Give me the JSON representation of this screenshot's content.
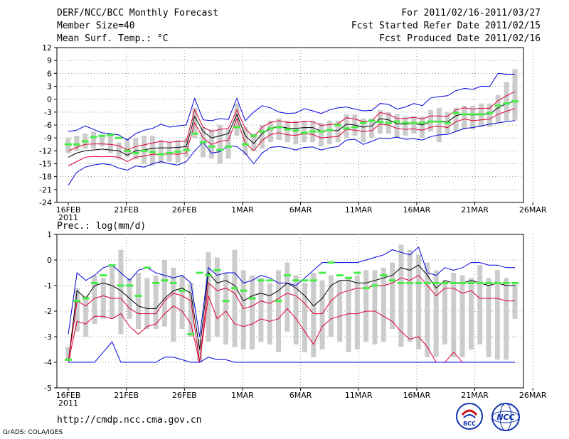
{
  "header": {
    "title": "DERF/NCC/BCC Monthly Forecast",
    "member_size": "Member Size=40",
    "variable": "Mean Surf. Temp.: °C",
    "period": "For 2011/02/16-2011/03/27",
    "started": "Fcst Started Refer Date 2011/02/15",
    "produced": "Fcst Produced Date 2011/02/16"
  },
  "footer": {
    "url": "http://cmdp.ncc.cma.gov.cn",
    "grads": "GrADS: COLA/IGES",
    "logo_left": "BCC",
    "logo_right": "NCC"
  },
  "colors": {
    "envelope": "#0000dd",
    "percentile": "#dd0033",
    "median": "#000000",
    "box": "#cccccc",
    "obs": "#44ee44",
    "grid": "#999999"
  },
  "chart_data": [
    {
      "type": "line",
      "title": "Mean Surf. Temp.: °C",
      "ylim": [
        -24,
        12
      ],
      "yticks": [
        "12",
        "9",
        "6",
        "3",
        "0",
        "-3",
        "-6",
        "-9",
        "-12",
        "-15",
        "-18",
        "-21",
        "-24"
      ],
      "xticks": [
        "16FEB",
        "21FEB",
        "26FEB",
        "1MAR",
        "6MAR",
        "11MAR",
        "16MAR",
        "21MAR",
        "26MAR"
      ],
      "xyear": "2011",
      "series": [
        {
          "name": "max",
          "values": [
            -20,
            -17,
            -15.8,
            -15.3,
            -15,
            -15.2,
            -16,
            -16.5,
            -15.5,
            -15.8,
            -15,
            -14.5,
            -15,
            -15.3,
            -14.5,
            -12,
            -10,
            -12.5,
            -12.2,
            -10.8,
            -11,
            -12.5,
            -15,
            -12.5,
            -11.2,
            -11,
            -11.3,
            -11.8,
            -11.2,
            -11.1,
            -11.8,
            -11.3,
            -11,
            -9.5,
            -9.3,
            -10.5,
            -9.8,
            -9,
            -9.2,
            -8.8,
            -9.3,
            -9.2,
            -9.5,
            -8.7,
            -8.3,
            -8.2,
            -7.5,
            -6.8,
            -6.6,
            -6.2,
            -5.8,
            -5.5,
            -5.2,
            -5
          ]
        },
        {
          "name": "p90",
          "values": [
            -15.5,
            -14.5,
            -13.5,
            -13.3,
            -13.4,
            -13.3,
            -13.5,
            -14.5,
            -13.5,
            -13.2,
            -12.8,
            -12.8,
            -12.7,
            -12.8,
            -12.5,
            -5.5,
            -9,
            -10.5,
            -9.8,
            -9.5,
            -4.5,
            -10.2,
            -12,
            -9.6,
            -8.2,
            -7.8,
            -8.3,
            -8.4,
            -8,
            -8.2,
            -9,
            -8.8,
            -8.7,
            -7,
            -7.2,
            -7.5,
            -7.3,
            -5.8,
            -6,
            -6.8,
            -7,
            -6.9,
            -7.2,
            -6.5,
            -6.3,
            -6.6,
            -5.2,
            -4.6,
            -5,
            -4.8,
            -4.6,
            -3.5,
            -2.8,
            -2.2
          ]
        },
        {
          "name": "median",
          "values": [
            -13.5,
            -12.5,
            -12,
            -11.8,
            -11.6,
            -11.8,
            -12,
            -13,
            -12,
            -11.8,
            -11.4,
            -11.3,
            -11.3,
            -11.2,
            -11,
            -4,
            -7.5,
            -9,
            -8.5,
            -8,
            -3.5,
            -8.5,
            -10.3,
            -8,
            -6.8,
            -6.3,
            -6.7,
            -6.8,
            -6.6,
            -6.6,
            -7.4,
            -7.3,
            -7.3,
            -5.8,
            -6,
            -6.5,
            -6.2,
            -4.5,
            -4.8,
            -5.7,
            -5.8,
            -5.6,
            -6,
            -5.2,
            -5.1,
            -5.3,
            -3.8,
            -3.4,
            -3.7,
            -3.5,
            -3.4,
            -2,
            -1,
            -0.5
          ]
        },
        {
          "name": "p10",
          "values": [
            -12,
            -11.2,
            -10.5,
            -10.4,
            -10.4,
            -10.5,
            -10.8,
            -11.8,
            -11,
            -10.6,
            -10.2,
            -9.8,
            -10,
            -9.8,
            -9.8,
            -2.5,
            -6.5,
            -7.5,
            -7,
            -6.8,
            -2.5,
            -6.8,
            -8.8,
            -6.5,
            -5.4,
            -5,
            -5.4,
            -5.4,
            -5.2,
            -5.2,
            -6.1,
            -5.9,
            -5.7,
            -4.3,
            -4.6,
            -5.2,
            -5,
            -3.1,
            -3.5,
            -4.5,
            -4.5,
            -4.2,
            -4.6,
            -3.9,
            -3.9,
            -4,
            -2.5,
            -2,
            -2.3,
            -2.1,
            -2.1,
            -0.3,
            0.8,
            1.8
          ]
        },
        {
          "name": "min",
          "values": [
            -7.5,
            -7.2,
            -6.2,
            -7,
            -7.8,
            -8,
            -8.3,
            -9.5,
            -8,
            -7.2,
            -6.8,
            -5.8,
            -6.5,
            -6.2,
            -6,
            0.2,
            -4.8,
            -5,
            -4.5,
            -4.7,
            0.2,
            -5,
            -3,
            -1.5,
            -2,
            -3,
            -3.3,
            -3.2,
            -2.2,
            -2.7,
            -3.3,
            -2.5,
            -2,
            -1.8,
            -2.3,
            -2.7,
            -2.6,
            -1,
            -1.2,
            -2.3,
            -1.8,
            -1,
            -1.5,
            0.3,
            0.6,
            0.8,
            2,
            2.5,
            2.3,
            3,
            3,
            6,
            5.8,
            5.8
          ]
        }
      ],
      "box_low": [
        -12.5,
        -12,
        -11.5,
        -11.5,
        -11,
        -12.5,
        -14,
        -13.5,
        -14,
        -15,
        -15.5,
        -15,
        -14.5,
        -14.8,
        -13.5,
        -9,
        -13.5,
        -13.8,
        -15,
        -13.8,
        -8.5,
        -13,
        -12,
        -11.5,
        -10,
        -9.5,
        -10,
        -10.5,
        -10,
        -10,
        -11,
        -10.5,
        -10,
        -9,
        -8.5,
        -10,
        -9,
        -8,
        -8,
        -9,
        -8.5,
        -8,
        -9,
        -7.5,
        -10,
        -8,
        -7.5,
        -7,
        -7,
        -6.5,
        -6.5,
        -5.5,
        -5,
        -5
      ],
      "box_high": [
        -9,
        -8.5,
        -8,
        -7.5,
        -8.5,
        -8,
        -10,
        -9,
        -9,
        -8.5,
        -8.5,
        -9.5,
        -10,
        -9.5,
        -9,
        -2,
        -6.5,
        -7,
        -6,
        -7,
        -1,
        -6.5,
        -8,
        -6,
        -5,
        -4.5,
        -5,
        -5,
        -5,
        -5,
        -5.5,
        -5,
        -5,
        -3.5,
        -3.5,
        -4.5,
        -4.5,
        -2.5,
        -3,
        -3.5,
        -4,
        -4,
        -4,
        -2.5,
        -2,
        -3,
        -2,
        -1.5,
        -1.5,
        -1,
        -1,
        1,
        4,
        7
      ],
      "obs": [
        -10.5,
        -10.5,
        -9.8,
        -8.8,
        -8.5,
        -8.3,
        -9,
        -12,
        -12.5,
        -12,
        -12.3,
        -12.8,
        -12.5,
        -12.2,
        -11.8,
        -8,
        -10,
        -11,
        -11.8,
        -11,
        -6.5,
        -10.5,
        -8.5,
        -7.5,
        -6.8,
        -6.5,
        -7,
        -7.3,
        -7.8,
        -7.5,
        -7.5,
        -7.2,
        -6,
        -6.8,
        -6.5,
        -5.5,
        -5,
        -5.3,
        -5.5,
        -5.2,
        -5.5,
        -5.5,
        -5.5,
        -5.2,
        -5.2,
        -5.5,
        -3.2,
        -3.5,
        -3.5,
        -3.5,
        -3.2,
        -1.5,
        -1,
        -0.5
      ]
    },
    {
      "type": "line",
      "title": "Prec.: log(mm/d)",
      "ylim": [
        -5,
        1
      ],
      "yticks": [
        "1",
        "0",
        "-1",
        "-2",
        "-3",
        "-4",
        "-5"
      ],
      "xticks": [
        "16FEB",
        "21FEB",
        "26FEB",
        "1MAR",
        "6MAR",
        "11MAR",
        "16MAR",
        "21MAR",
        "26MAR"
      ],
      "xyear": "2011",
      "series": [
        {
          "name": "max",
          "values": [
            -2.9,
            -0.5,
            -0.8,
            -0.6,
            -0.3,
            -0.2,
            -0.5,
            -0.8,
            -0.4,
            -0.3,
            -0.5,
            -0.6,
            -0.7,
            -0.6,
            -0.9,
            -3,
            -0.3,
            -0.6,
            -0.5,
            -0.5,
            -0.9,
            -0.8,
            -0.6,
            -0.7,
            -0.9,
            -0.9,
            -1,
            -0.7,
            -0.4,
            -0.1,
            -0.1,
            -0.1,
            -0.1,
            -0.1,
            0,
            0.1,
            0.2,
            0.4,
            0.3,
            0.2,
            0.5,
            -0.5,
            -0.6,
            -0.3,
            -0.4,
            -0.3,
            -0.1,
            -0.1,
            -0.2,
            -0.2,
            -0.3,
            -0.3
          ]
        },
        {
          "name": "median",
          "values": [
            -4,
            -1.2,
            -1.5,
            -1,
            -0.9,
            -1,
            -1.2,
            -1.5,
            -1.8,
            -1.9,
            -1.9,
            -1.5,
            -1.2,
            -1.1,
            -1.3,
            -3.5,
            -0.5,
            -0.9,
            -0.8,
            -1,
            -1.6,
            -1.4,
            -1.3,
            -1.4,
            -1.2,
            -0.9,
            -1.1,
            -1.4,
            -1.8,
            -1.5,
            -1,
            -0.8,
            -0.8,
            -0.9,
            -0.9,
            -0.8,
            -0.7,
            -0.6,
            -0.3,
            -0.4,
            -0.2,
            -0.6,
            -1.1,
            -0.8,
            -0.9,
            -0.9,
            -0.8,
            -0.9,
            -1,
            -0.9,
            -1,
            -1
          ]
        },
        {
          "name": "p10",
          "values": [
            -4,
            -1.6,
            -1.8,
            -1.5,
            -1.4,
            -1.5,
            -1.5,
            -1.9,
            -2.1,
            -2.1,
            -2.1,
            -1.6,
            -1.3,
            -1.4,
            -1.6,
            -4,
            -0.9,
            -1.2,
            -1.1,
            -1.3,
            -1.9,
            -1.8,
            -1.6,
            -1.7,
            -1.5,
            -1.3,
            -1.4,
            -1.7,
            -2.1,
            -2.1,
            -1.6,
            -1.3,
            -1.2,
            -1.1,
            -1.1,
            -1,
            -1,
            -0.9,
            -0.7,
            -0.8,
            -0.6,
            -1,
            -1.4,
            -1.1,
            -1.1,
            -1.3,
            -1.2,
            -1.5,
            -1.5,
            -1.5,
            -1.6,
            -1.6
          ]
        },
        {
          "name": "p25",
          "values": [
            -4,
            -2.4,
            -2.5,
            -2.2,
            -2.2,
            -2.3,
            -2.1,
            -2.6,
            -2.9,
            -2.6,
            -2.5,
            -2.1,
            -1.8,
            -2,
            -2.5,
            -4,
            -1.4,
            -2.3,
            -2,
            -2.5,
            -2.6,
            -2.5,
            -2.3,
            -2.4,
            -2.3,
            -1.9,
            -2.3,
            -2.8,
            -3.3,
            -2.6,
            -2.3,
            -2.2,
            -2.1,
            -2.1,
            -2,
            -2,
            -2.2,
            -2.4,
            -2.8,
            -3.1,
            -3,
            -3.4,
            -4,
            -4,
            -3.6,
            -4,
            -4,
            -4,
            -4,
            -4,
            -4,
            -4
          ]
        },
        {
          "name": "min",
          "values": [
            -4,
            -4,
            -4,
            -4,
            -3.6,
            -3.2,
            -4,
            -4,
            -4,
            -4,
            -4,
            -3.8,
            -3.8,
            -3.9,
            -4,
            -4,
            -3.8,
            -3.9,
            -3.9,
            -4,
            -4,
            -4,
            -4,
            -4,
            -4,
            -4,
            -4,
            -4,
            -4,
            -4,
            -4,
            -4,
            -4,
            -4,
            -4,
            -4,
            -4,
            -4,
            -4,
            -4,
            -4,
            -4,
            -4,
            -4,
            -4,
            -4,
            -4,
            -4,
            -4,
            -4,
            -4,
            -4
          ]
        }
      ],
      "box_low": [
        -3.9,
        -2.8,
        -3,
        -2.5,
        -2.3,
        -2.3,
        -2.9,
        -2.3,
        -2.7,
        -2.7,
        -2.7,
        -2.6,
        -3.2,
        -2.7,
        -3,
        -4,
        -3.2,
        -3,
        -3.3,
        -3.4,
        -3.5,
        -3.5,
        -3.2,
        -3.3,
        -3.6,
        -2.8,
        -3.3,
        -3.6,
        -3.8,
        -3.5,
        -3,
        -3.2,
        -3.6,
        -3.5,
        -3.2,
        -3.3,
        -3.2,
        -2.7,
        -3.4,
        -3.2,
        -3.5,
        -3.8,
        -3.8,
        -3.3,
        -3.8,
        -3.8,
        -3.5,
        -3.3,
        -3.8,
        -3.9,
        -3.9,
        -2.3
      ],
      "box_high": [
        -3.4,
        -1.1,
        -1.4,
        -0.6,
        -0.7,
        -0.2,
        0.4,
        -0.7,
        -0.5,
        -0.7,
        -0.6,
        0,
        -0.3,
        -0.6,
        -0.9,
        -3.1,
        0.3,
        0.1,
        -0.5,
        0.4,
        -0.4,
        -0.6,
        -0.7,
        -0.9,
        -0.4,
        -0.1,
        -0.6,
        -0.9,
        -0.5,
        -0.8,
        -0.6,
        -0.8,
        -0.7,
        -0.6,
        -0.4,
        -0.4,
        -0.3,
        -0.1,
        0.6,
        0.4,
        0.2,
        -0.1,
        -0.4,
        -0.8,
        -0.5,
        -0.6,
        -0.7,
        -0.2,
        -0.7,
        -0.4,
        -0.7,
        -0.9
      ],
      "obs": [
        -3.9,
        -1.6,
        -1.5,
        -0.9,
        -0.6,
        -0.2,
        -1,
        -1,
        -1.4,
        -0.3,
        -0.9,
        -0.8,
        -0.9,
        -1.2,
        -2.9,
        -0.5,
        -0.6,
        -0.4,
        -1.6,
        -1.1,
        -1.2,
        -1.5,
        -0.8,
        -0.8,
        -1.6,
        -0.6,
        -0.8,
        -0.8,
        -0.8,
        -0.5,
        -0.1,
        -0.6,
        -0.7,
        -0.5,
        -1.1,
        -1,
        -0.6,
        -0.8,
        -0.9,
        -0.9,
        -0.9,
        -0.9,
        -0.9,
        -0.9,
        -0.9,
        -0.9,
        -0.9,
        -0.9,
        -0.9,
        -0.9,
        -0.9,
        -0.9
      ]
    }
  ]
}
